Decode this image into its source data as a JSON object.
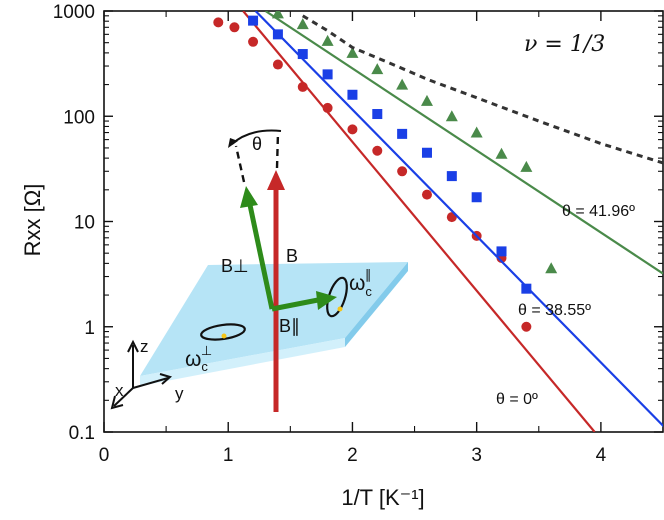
{
  "chart_data": {
    "type": "scatter",
    "title": "",
    "annotation": "ν = 1/3",
    "xlabel": "1/T [K⁻¹]",
    "ylabel": "Rxx [Ω]",
    "xlim": [
      0,
      4.5
    ],
    "ylim": [
      0.1,
      1000
    ],
    "yscale": "log",
    "x_ticks": [
      "0",
      "1",
      "2",
      "3",
      "4"
    ],
    "y_ticks": [
      "0.1",
      "1",
      "10",
      "100",
      "1000"
    ],
    "series": [
      {
        "name": "θ = 0º",
        "label": "θ = 0º",
        "color": "#c62828",
        "marker": "circle",
        "points": [
          [
            0.92,
            780
          ],
          [
            1.05,
            700
          ],
          [
            1.2,
            510
          ],
          [
            1.4,
            310
          ],
          [
            1.6,
            190
          ],
          [
            1.8,
            120
          ],
          [
            2.0,
            75
          ],
          [
            2.2,
            47
          ],
          [
            2.4,
            30
          ],
          [
            2.6,
            18
          ],
          [
            2.8,
            11
          ],
          [
            3.0,
            7.3
          ],
          [
            3.2,
            4.5
          ],
          [
            3.4,
            1.0
          ]
        ],
        "fit": [
          [
            1.12,
            1000
          ],
          [
            3.95,
            0.1
          ]
        ]
      },
      {
        "name": "θ = 38.55º",
        "label": "θ = 38.55º",
        "color": "#1a3fe6",
        "marker": "square",
        "points": [
          [
            1.2,
            810
          ],
          [
            1.4,
            600
          ],
          [
            1.6,
            390
          ],
          [
            1.8,
            250
          ],
          [
            2.0,
            160
          ],
          [
            2.2,
            105
          ],
          [
            2.4,
            68
          ],
          [
            2.6,
            45
          ],
          [
            2.8,
            27
          ],
          [
            3.0,
            17
          ],
          [
            3.2,
            5.2
          ],
          [
            3.4,
            2.3
          ]
        ],
        "fit": [
          [
            1.22,
            1000
          ],
          [
            4.55,
            0.1
          ]
        ]
      },
      {
        "name": "θ = 41.96º",
        "label": "θ = 41.96º",
        "color": "#4a8a4a",
        "marker": "triangle",
        "points": [
          [
            1.4,
            950
          ],
          [
            1.6,
            750
          ],
          [
            1.8,
            520
          ],
          [
            2.0,
            400
          ],
          [
            2.2,
            280
          ],
          [
            2.4,
            200
          ],
          [
            2.6,
            140
          ],
          [
            2.8,
            100
          ],
          [
            3.0,
            70
          ],
          [
            3.2,
            44
          ],
          [
            3.4,
            33
          ],
          [
            3.6,
            3.6
          ]
        ],
        "fit": [
          [
            1.3,
            1000
          ],
          [
            4.5,
            3.2
          ]
        ]
      },
      {
        "name": "dashed reference",
        "label": "",
        "color": "#333333",
        "marker": "none",
        "line": "dashed",
        "points": [
          [
            1.6,
            900
          ],
          [
            1.8,
            650
          ],
          [
            2.0,
            450
          ],
          [
            2.3,
            320
          ],
          [
            2.6,
            225
          ],
          [
            3.0,
            150
          ],
          [
            3.5,
            90
          ],
          [
            4.0,
            55
          ],
          [
            4.5,
            36
          ]
        ]
      }
    ]
  },
  "inset": {
    "labels": {
      "theta": "θ",
      "B": "B",
      "B_perp": "B⊥",
      "B_par": "B∥",
      "omega_perp": "ω",
      "omega_perp_sub": "c",
      "omega_perp_sup": "⊥",
      "omega_par": "ω",
      "omega_par_sub": "c",
      "omega_par_sup": "∥",
      "axis_x": "x",
      "axis_y": "y",
      "axis_z": "z"
    },
    "colors": {
      "slab": "#a9dff5",
      "B": "#c62828",
      "B_components": "#2e8b1a",
      "orbit": "#111111",
      "dot": "#f5c518"
    }
  }
}
